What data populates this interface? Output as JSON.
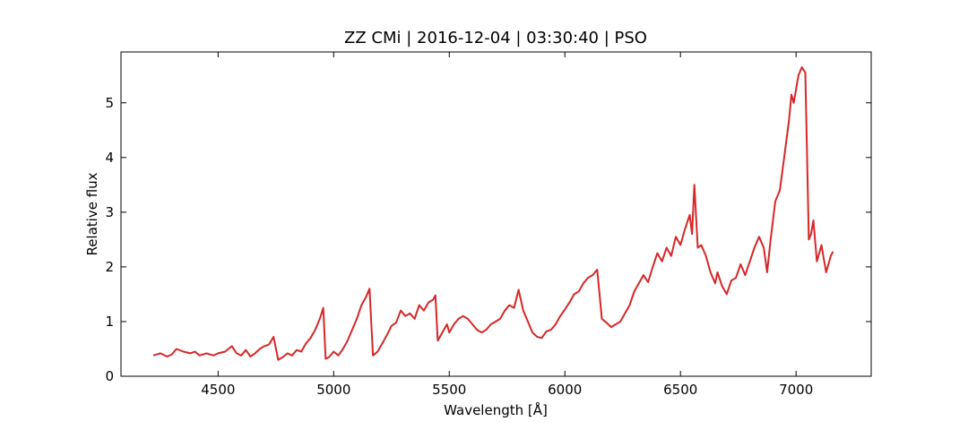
{
  "chart_data": {
    "type": "line",
    "title": "ZZ CMi | 2016-12-04 | 03:30:40 | PSO",
    "xlabel": "Wavelength [Å]",
    "ylabel": "Relative flux",
    "xlim": [
      4080,
      7325
    ],
    "ylim": [
      0,
      5.93
    ],
    "xticks": [
      4500,
      5000,
      5500,
      6000,
      6500,
      7000
    ],
    "yticks": [
      0,
      1,
      2,
      3,
      4,
      5
    ],
    "grid": false,
    "series": [
      {
        "name": "flux",
        "color": "#d62728",
        "x": [
          4220,
          4250,
          4280,
          4300,
          4320,
          4350,
          4380,
          4400,
          4420,
          4450,
          4480,
          4500,
          4530,
          4560,
          4580,
          4600,
          4620,
          4640,
          4660,
          4680,
          4700,
          4720,
          4740,
          4760,
          4780,
          4800,
          4820,
          4840,
          4860,
          4880,
          4900,
          4920,
          4940,
          4955,
          4965,
          4980,
          5000,
          5020,
          5040,
          5060,
          5080,
          5100,
          5120,
          5140,
          5155,
          5170,
          5190,
          5210,
          5230,
          5250,
          5270,
          5290,
          5310,
          5330,
          5350,
          5370,
          5390,
          5410,
          5430,
          5440,
          5450,
          5470,
          5490,
          5500,
          5520,
          5540,
          5560,
          5580,
          5600,
          5620,
          5640,
          5660,
          5680,
          5700,
          5720,
          5740,
          5760,
          5780,
          5800,
          5820,
          5840,
          5860,
          5880,
          5900,
          5920,
          5940,
          5960,
          5980,
          6000,
          6020,
          6040,
          6060,
          6080,
          6100,
          6120,
          6140,
          6160,
          6180,
          6200,
          6220,
          6240,
          6260,
          6280,
          6300,
          6320,
          6340,
          6360,
          6380,
          6400,
          6420,
          6440,
          6460,
          6480,
          6500,
          6520,
          6540,
          6550,
          6560,
          6575,
          6590,
          6610,
          6630,
          6650,
          6660,
          6680,
          6700,
          6720,
          6740,
          6760,
          6780,
          6800,
          6820,
          6840,
          6860,
          6875,
          6890,
          6910,
          6930,
          6950,
          6970,
          6980,
          6990,
          7010,
          7025,
          7040,
          7055,
          7065,
          7075,
          7090,
          7110,
          7130,
          7150,
          7160
        ],
        "values": [
          0.38,
          0.42,
          0.36,
          0.4,
          0.5,
          0.45,
          0.42,
          0.45,
          0.38,
          0.42,
          0.38,
          0.42,
          0.45,
          0.55,
          0.42,
          0.38,
          0.48,
          0.36,
          0.42,
          0.5,
          0.55,
          0.58,
          0.72,
          0.3,
          0.35,
          0.42,
          0.38,
          0.48,
          0.45,
          0.6,
          0.7,
          0.85,
          1.05,
          1.25,
          0.32,
          0.35,
          0.45,
          0.38,
          0.5,
          0.65,
          0.85,
          1.05,
          1.3,
          1.45,
          1.6,
          0.38,
          0.45,
          0.6,
          0.75,
          0.92,
          0.98,
          1.2,
          1.1,
          1.15,
          1.05,
          1.3,
          1.2,
          1.35,
          1.4,
          1.48,
          0.65,
          0.8,
          0.95,
          0.8,
          0.95,
          1.05,
          1.1,
          1.05,
          0.95,
          0.85,
          0.8,
          0.85,
          0.95,
          1.0,
          1.05,
          1.2,
          1.3,
          1.25,
          1.58,
          1.2,
          1.0,
          0.8,
          0.72,
          0.7,
          0.82,
          0.85,
          0.95,
          1.1,
          1.22,
          1.35,
          1.5,
          1.55,
          1.7,
          1.8,
          1.85,
          1.95,
          1.05,
          0.98,
          0.9,
          0.95,
          1.0,
          1.15,
          1.3,
          1.55,
          1.7,
          1.85,
          1.72,
          2.0,
          2.25,
          2.1,
          2.35,
          2.2,
          2.55,
          2.4,
          2.7,
          2.95,
          2.6,
          3.5,
          2.35,
          2.4,
          2.2,
          1.9,
          1.7,
          1.9,
          1.65,
          1.5,
          1.75,
          1.8,
          2.05,
          1.85,
          2.1,
          2.35,
          2.55,
          2.35,
          1.9,
          2.5,
          3.2,
          3.4,
          4.05,
          4.7,
          5.15,
          5.0,
          5.5,
          5.65,
          5.55,
          2.5,
          2.6,
          2.85,
          2.1,
          2.4,
          1.9,
          2.2,
          2.28
        ]
      }
    ]
  }
}
